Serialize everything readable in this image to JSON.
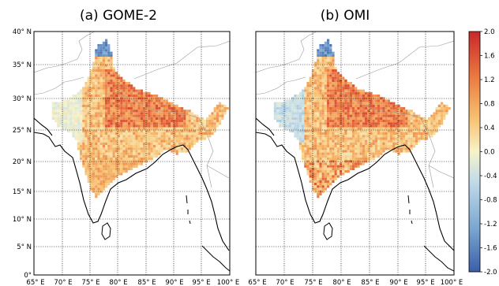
{
  "panels": [
    {
      "title": "(a) GOME-2"
    },
    {
      "title": "(b) OMI"
    }
  ],
  "lat_labels": [
    "40° N",
    "35° N",
    "30° N",
    "25° N",
    "20° N",
    "15° N",
    "10° N",
    "5° N",
    "0°"
  ],
  "lon_labels": [
    "65° E",
    "70° E",
    "75° E",
    "80° E",
    "85° E",
    "90° E",
    "95° E",
    "100° E"
  ],
  "colorbar": {
    "labels": [
      "2.0",
      "1.6",
      "1.2",
      "0.8",
      "0.4",
      "0.0",
      "-0.4",
      "-0.8",
      "-1.2",
      "-1.6",
      "-2.0"
    ],
    "range": [
      -2.0,
      2.0
    ],
    "colors": [
      "#3b5fa8",
      "#7aa6d0",
      "#c3dcea",
      "#f7f3c9",
      "#f8c070",
      "#ea7640",
      "#c9272b"
    ]
  },
  "map": {
    "lon_range": [
      65,
      100
    ],
    "lat_range": [
      0,
      40
    ],
    "gridlines": "dotted",
    "coastline_color": "#000000",
    "border_color": "#9a9a9a"
  }
}
